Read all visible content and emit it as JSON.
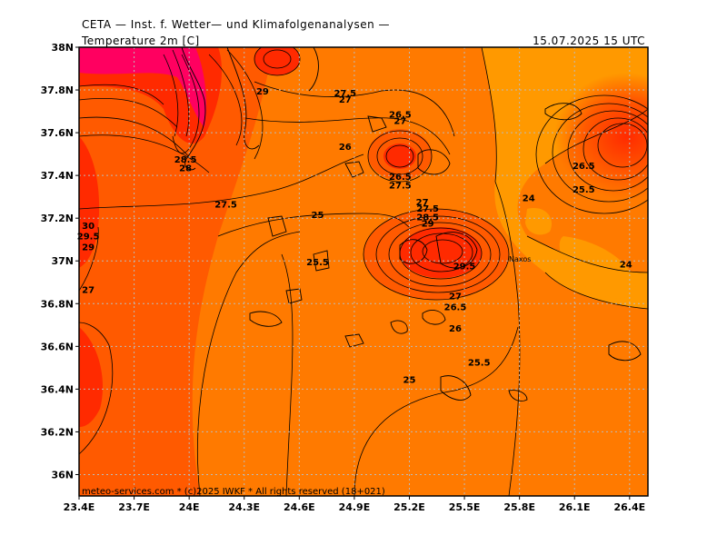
{
  "header": {
    "title": "CETA — Inst. f. Wetter— und Klimafolgenanalysen —",
    "variable": "Temperature 2m [C]",
    "datetime": "15.07.2025 15 UTC"
  },
  "footer": "meteo-services.com * (c)2025 IWKF * All rights reserved (18+021)",
  "map": {
    "lon_range": [
      23.4,
      26.5
    ],
    "lat_range": [
      35.9,
      38.0
    ],
    "lon_ticks": [
      "23.4E",
      "23.7E",
      "24E",
      "24.3E",
      "24.6E",
      "24.9E",
      "25.2E",
      "25.5E",
      "25.8E",
      "26.1E",
      "26.4E"
    ],
    "lat_ticks": [
      "38N",
      "37.8N",
      "37.6N",
      "37.4N",
      "37.2N",
      "37N",
      "36.8N",
      "36.6N",
      "36.4N",
      "36.2N",
      "36N"
    ],
    "place_label": "Naxos",
    "colors": {
      "band_24": "#ff9900",
      "band_25": "#ff7a00",
      "band_27": "#ff5a00",
      "band_29": "#ff2a00",
      "band_32": "#ff0060",
      "contour": "#000000",
      "grid": "#bbbbbb"
    },
    "contour_labels": [
      {
        "text": "29",
        "lon": 24.4,
        "lat": 37.78
      },
      {
        "text": "27.5",
        "lon": 24.85,
        "lat": 37.77
      },
      {
        "text": "27",
        "lon": 24.85,
        "lat": 37.74
      },
      {
        "text": "26.5",
        "lon": 25.15,
        "lat": 37.67
      },
      {
        "text": "27",
        "lon": 25.15,
        "lat": 37.64
      },
      {
        "text": "26",
        "lon": 24.85,
        "lat": 37.52
      },
      {
        "text": "28.5",
        "lon": 23.98,
        "lat": 37.46
      },
      {
        "text": "28",
        "lon": 23.98,
        "lat": 37.42
      },
      {
        "text": "27.5",
        "lon": 24.2,
        "lat": 37.25
      },
      {
        "text": "25",
        "lon": 24.7,
        "lat": 37.2
      },
      {
        "text": "26.5",
        "lon": 25.15,
        "lat": 37.38
      },
      {
        "text": "27.5",
        "lon": 25.15,
        "lat": 37.34
      },
      {
        "text": "27",
        "lon": 25.27,
        "lat": 37.26
      },
      {
        "text": "27.5",
        "lon": 25.3,
        "lat": 37.23
      },
      {
        "text": "28.5",
        "lon": 25.3,
        "lat": 37.19
      },
      {
        "text": "29",
        "lon": 25.3,
        "lat": 37.16
      },
      {
        "text": "29.5",
        "lon": 25.5,
        "lat": 36.96
      },
      {
        "text": "27",
        "lon": 25.45,
        "lat": 36.82
      },
      {
        "text": "26.5",
        "lon": 25.45,
        "lat": 36.77
      },
      {
        "text": "26",
        "lon": 25.45,
        "lat": 36.67
      },
      {
        "text": "25.5",
        "lon": 25.58,
        "lat": 36.51
      },
      {
        "text": "25",
        "lon": 25.2,
        "lat": 36.43
      },
      {
        "text": "25.5",
        "lon": 24.7,
        "lat": 36.98
      },
      {
        "text": "24",
        "lon": 25.85,
        "lat": 37.28
      },
      {
        "text": "24",
        "lon": 26.38,
        "lat": 36.97
      },
      {
        "text": "26.5",
        "lon": 26.15,
        "lat": 37.43
      },
      {
        "text": "25.5",
        "lon": 26.15,
        "lat": 37.32
      },
      {
        "text": "30",
        "lon": 23.45,
        "lat": 37.15
      },
      {
        "text": "29.5",
        "lon": 23.45,
        "lat": 37.1
      },
      {
        "text": "29",
        "lon": 23.45,
        "lat": 37.05
      },
      {
        "text": "27",
        "lon": 23.45,
        "lat": 36.85
      }
    ]
  }
}
